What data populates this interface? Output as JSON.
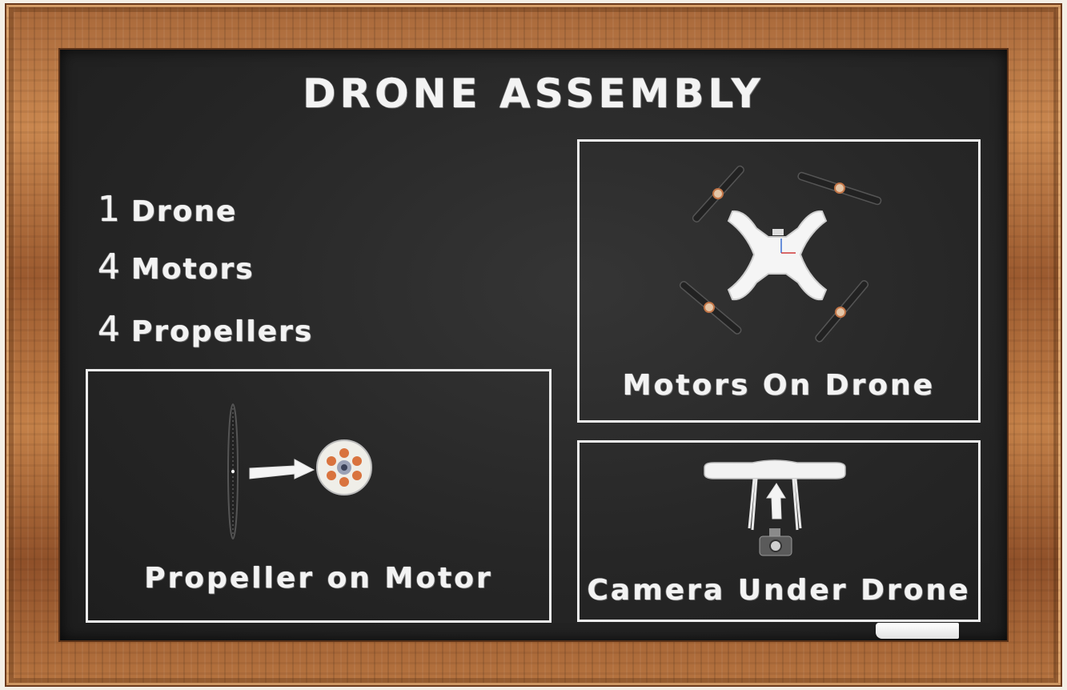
{
  "title": "DRONE ASSEMBLY",
  "parts_list": [
    {
      "count": "1",
      "name": "Drone"
    },
    {
      "count": "4",
      "name": "Motors"
    },
    {
      "count": "4",
      "name": "Propellers"
    }
  ],
  "panels": {
    "propeller_on_motor": {
      "label": "Propeller on Motor"
    },
    "motors_on_drone": {
      "label": "Motors On Drone"
    },
    "camera_under_drone": {
      "label": "Camera Under Drone"
    }
  }
}
